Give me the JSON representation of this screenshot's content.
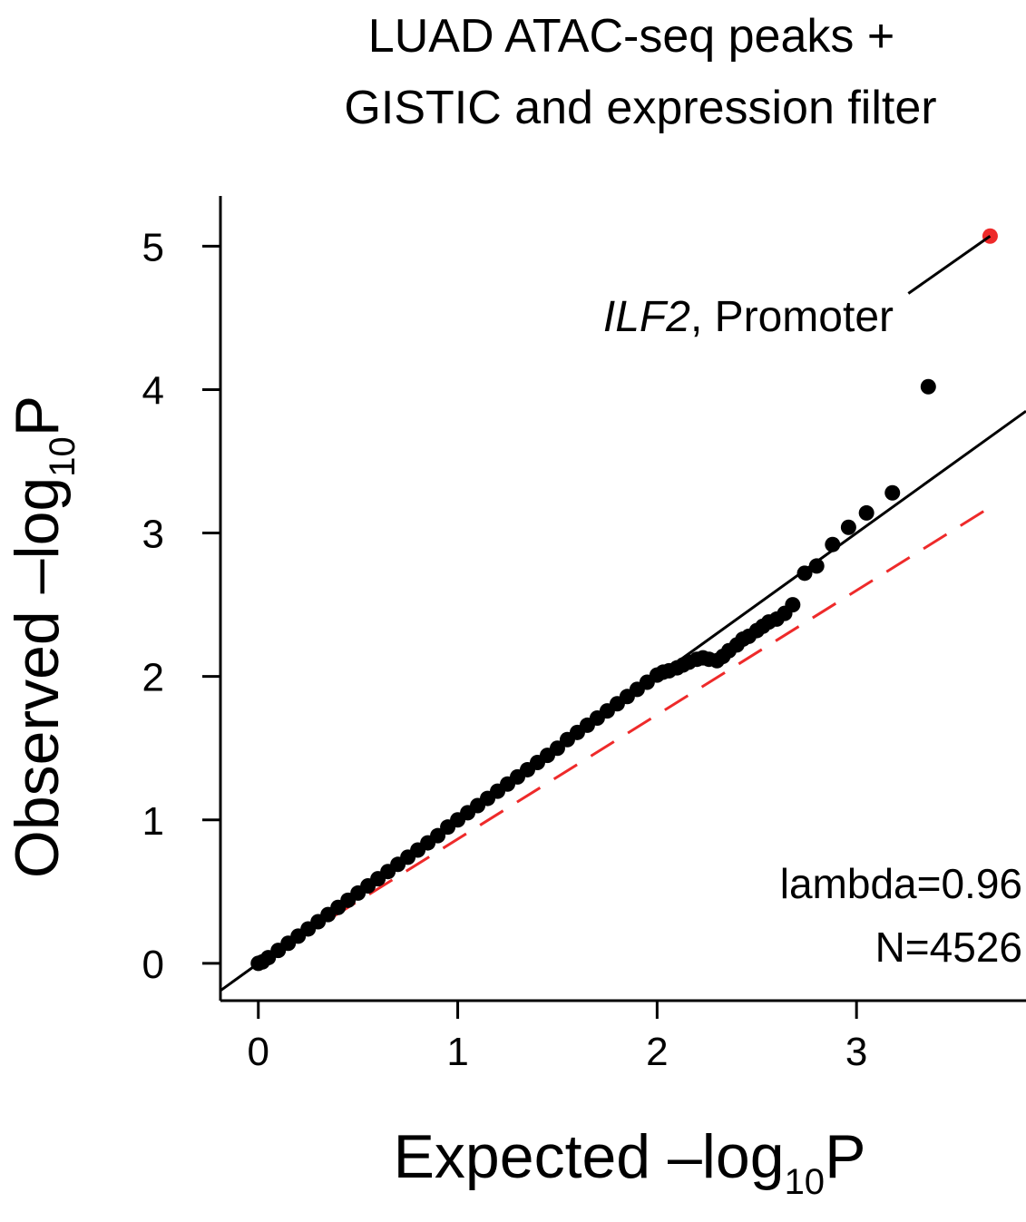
{
  "chart_data": {
    "type": "scatter",
    "title_lines": [
      "LUAD ATAC-seq peaks +",
      "GISTIC and expression filter"
    ],
    "xlabel": {
      "main": "Expected –log",
      "sub": "10",
      "tail": "P"
    },
    "ylabel": {
      "main": "Observed –log",
      "sub": "10",
      "tail": "P"
    },
    "xlim": [
      -0.19,
      3.85
    ],
    "ylim": [
      -0.26,
      5.35
    ],
    "xticks": [
      0,
      1,
      2,
      3
    ],
    "yticks": [
      0,
      1,
      2,
      3,
      4,
      5
    ],
    "xtick_labels": [
      "0",
      "1",
      "2",
      "3"
    ],
    "ytick_labels": [
      "0",
      "1",
      "2",
      "3",
      "4",
      "5"
    ],
    "grid": false,
    "n_points": 4526,
    "series": [
      {
        "kind": "qq-points",
        "color": "#000000",
        "x": [
          0.0,
          0.02,
          0.05,
          0.1,
          0.15,
          0.2,
          0.25,
          0.3,
          0.35,
          0.4,
          0.45,
          0.5,
          0.55,
          0.6,
          0.65,
          0.7,
          0.75,
          0.8,
          0.85,
          0.9,
          0.95,
          1.0,
          1.05,
          1.1,
          1.15,
          1.2,
          1.25,
          1.3,
          1.35,
          1.4,
          1.45,
          1.5,
          1.55,
          1.6,
          1.65,
          1.7,
          1.75,
          1.8,
          1.85,
          1.9,
          1.95,
          2.0,
          2.03,
          2.06,
          2.1,
          2.13,
          2.16,
          2.2,
          2.23,
          2.26,
          2.3,
          2.33,
          2.36,
          2.4,
          2.43,
          2.46,
          2.5,
          2.53,
          2.56,
          2.6,
          2.64,
          2.68,
          2.74,
          2.8,
          2.88,
          2.96,
          3.05,
          3.18,
          3.36
        ],
        "y": [
          0.0,
          0.01,
          0.04,
          0.09,
          0.14,
          0.19,
          0.24,
          0.29,
          0.34,
          0.39,
          0.44,
          0.49,
          0.54,
          0.59,
          0.64,
          0.69,
          0.74,
          0.79,
          0.84,
          0.89,
          0.95,
          1.0,
          1.05,
          1.1,
          1.15,
          1.2,
          1.25,
          1.3,
          1.35,
          1.4,
          1.45,
          1.5,
          1.56,
          1.61,
          1.66,
          1.71,
          1.76,
          1.81,
          1.86,
          1.91,
          1.96,
          2.01,
          2.03,
          2.04,
          2.06,
          2.08,
          2.1,
          2.12,
          2.13,
          2.12,
          2.11,
          2.14,
          2.18,
          2.22,
          2.26,
          2.28,
          2.32,
          2.35,
          2.38,
          2.4,
          2.44,
          2.5,
          2.72,
          2.77,
          2.92,
          3.04,
          3.14,
          3.28,
          4.02
        ]
      },
      {
        "kind": "highlight-point",
        "color": "#ee2a2a",
        "x": [
          3.67
        ],
        "y": [
          5.07
        ]
      }
    ],
    "reference_lines": [
      {
        "kind": "identity",
        "color": "#000000",
        "style": "solid",
        "x": [
          -0.19,
          3.85
        ],
        "y": [
          -0.19,
          3.85
        ]
      },
      {
        "kind": "lambda-fit",
        "color": "#ee2a2a",
        "style": "dashed",
        "x": [
          0,
          3.67
        ],
        "y": [
          0,
          3.18
        ]
      }
    ],
    "annotations": {
      "gene_label": {
        "gene": "ILF2",
        "suffix": ", Promoter",
        "x": 2.45,
        "y": 4.47
      },
      "connector": {
        "x": [
          3.26,
          3.67
        ],
        "y": [
          4.67,
          5.07
        ]
      },
      "lambda_text": "lambda=0.96",
      "n_text": "N=4526"
    }
  }
}
